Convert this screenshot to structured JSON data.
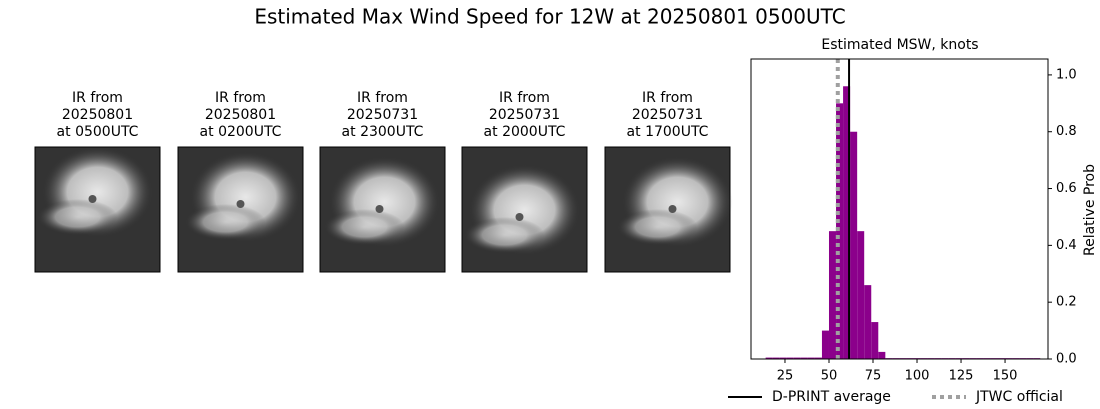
{
  "title": "Estimated Max Wind Speed for 12W at 20250801 0500UTC",
  "images": [
    {
      "caption": [
        "IR from",
        "20250801",
        "at 0500UTC"
      ]
    },
    {
      "caption": [
        "IR from",
        "20250801",
        "at 0200UTC"
      ]
    },
    {
      "caption": [
        "IR from",
        "20250731",
        "at 2300UTC"
      ]
    },
    {
      "caption": [
        "IR from",
        "20250731",
        "at 2000UTC"
      ]
    },
    {
      "caption": [
        "IR from",
        "20250731",
        "at 1700UTC"
      ]
    }
  ],
  "chart_data": {
    "type": "histogram",
    "title": "Estimated MSW, knots",
    "ylabel": "Relative Prob",
    "color": "#8b008b",
    "bins": [
      14,
      18,
      22,
      26,
      30,
      34,
      38,
      42,
      46,
      50,
      54,
      58,
      62,
      66,
      70,
      74,
      78,
      82,
      86,
      90,
      94,
      98,
      102,
      106,
      110,
      114,
      118,
      122,
      126,
      130,
      134,
      138,
      142,
      146,
      150,
      154,
      158,
      162,
      166,
      170
    ],
    "values": [
      0.005,
      0.005,
      0.005,
      0.005,
      0.005,
      0.005,
      0.005,
      0.005,
      0.1,
      0.45,
      0.9,
      0.96,
      0.8,
      0.45,
      0.26,
      0.13,
      0.025,
      0.003,
      0.003,
      0.003,
      0.003,
      0.003,
      0.003,
      0.003,
      0.003,
      0.003,
      0.003,
      0.003,
      0.003,
      0.003,
      0.003,
      0.003,
      0.003,
      0.003,
      0.003,
      0.003,
      0.003,
      0.003,
      0.003
    ],
    "vlines": [
      {
        "name": "D-PRINT average",
        "value": 61.4,
        "color": "#000000",
        "style": "solid"
      },
      {
        "name": "JTWC official",
        "value": 55,
        "color": "#a0a0a0",
        "style": "dotted"
      }
    ],
    "xlim": [
      5.7,
      174.4
    ],
    "xticks": [
      25,
      50,
      75,
      100,
      125,
      150
    ],
    "ylim": [
      0,
      1.056
    ],
    "yticks": [
      {
        "value": 0,
        "label": "0.0"
      },
      0.2,
      0.4,
      0.6,
      0.8,
      {
        "value": 1,
        "label": "1.0"
      }
    ]
  }
}
